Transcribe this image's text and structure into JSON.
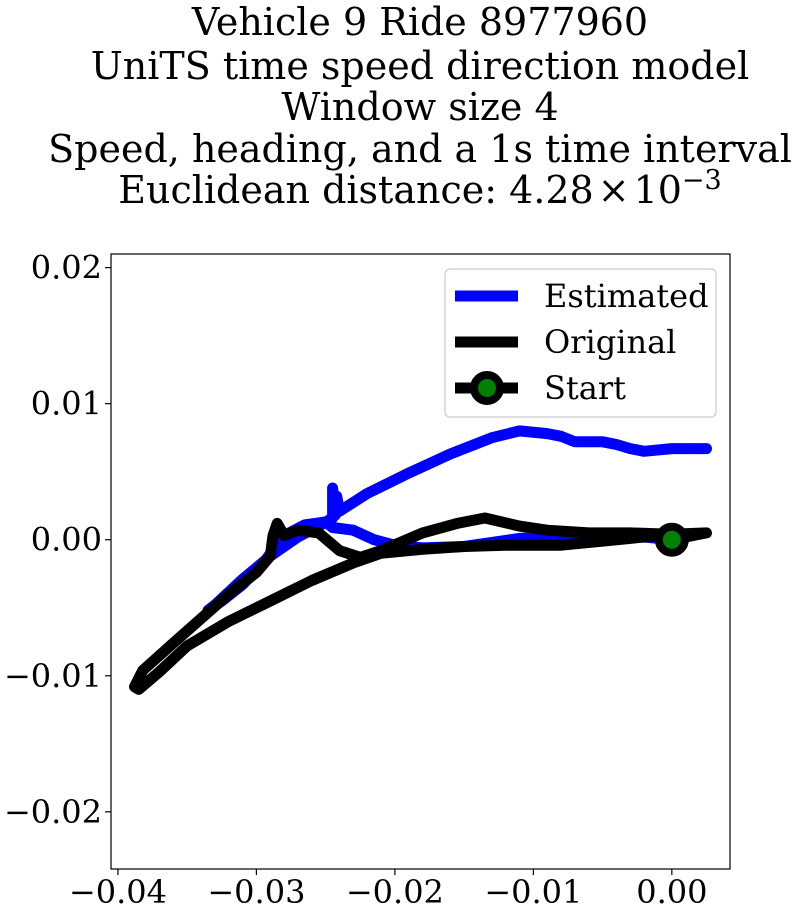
{
  "chart_data": {
    "type": "line",
    "title_lines": [
      "Vehicle 9 Ride 8977960",
      "UniTS time speed direction model",
      "Window size 4",
      "Speed, heading, and a 1s time interval"
    ],
    "title_distance_prefix": "Euclidean distance: ",
    "title_distance_mantissa": "4.28",
    "title_distance_times": "×",
    "title_distance_base": "10",
    "title_distance_exponent": "−3",
    "xlabel": "",
    "ylabel": "",
    "xlim": [
      -0.0405,
      0.0042
    ],
    "ylim": [
      -0.0242,
      0.021
    ],
    "grid": false,
    "legend_position": "top-right",
    "x_ticks": [
      {
        "value": -0.04,
        "label": "−0.04"
      },
      {
        "value": -0.03,
        "label": "−0.03"
      },
      {
        "value": -0.02,
        "label": "−0.02"
      },
      {
        "value": -0.01,
        "label": "−0.01"
      },
      {
        "value": 0.0,
        "label": "0.00"
      }
    ],
    "y_ticks": [
      {
        "value": 0.02,
        "label": "0.02"
      },
      {
        "value": 0.01,
        "label": "0.01"
      },
      {
        "value": 0.0,
        "label": "0.00"
      },
      {
        "value": -0.01,
        "label": "−0.01"
      },
      {
        "value": -0.02,
        "label": "−0.02"
      }
    ],
    "series": [
      {
        "name": "Estimated",
        "color": "#0000ff",
        "points": [
          [
            0.0,
            0.0
          ],
          [
            -0.002,
            0.0002
          ],
          [
            -0.005,
            0.0001
          ],
          [
            -0.008,
            0.0002
          ],
          [
            -0.011,
            0.0001
          ],
          [
            -0.013,
            -0.0002
          ],
          [
            -0.015,
            -0.0005
          ],
          [
            -0.018,
            -0.0006
          ],
          [
            -0.02,
            -0.0004
          ],
          [
            -0.0215,
            0.0
          ],
          [
            -0.023,
            0.0007
          ],
          [
            -0.0245,
            0.0009
          ],
          [
            -0.025,
            0.0013
          ],
          [
            -0.0265,
            0.0011
          ],
          [
            -0.028,
            0.0003
          ],
          [
            -0.0295,
            -0.0017
          ],
          [
            -0.031,
            -0.0033
          ],
          [
            -0.0325,
            -0.0045
          ],
          [
            -0.0335,
            -0.0052
          ],
          [
            -0.033,
            -0.0048
          ],
          [
            -0.031,
            -0.0029
          ],
          [
            -0.029,
            -0.0012
          ],
          [
            -0.027,
            0.0002
          ],
          [
            -0.0255,
            0.001
          ],
          [
            -0.0245,
            0.0016
          ],
          [
            -0.0245,
            0.0038
          ],
          [
            -0.0243,
            0.0018
          ],
          [
            -0.0242,
            0.0032
          ],
          [
            -0.024,
            0.0021
          ],
          [
            -0.022,
            0.0034
          ],
          [
            -0.019,
            0.0049
          ],
          [
            -0.016,
            0.0063
          ],
          [
            -0.013,
            0.0075
          ],
          [
            -0.011,
            0.008
          ],
          [
            -0.009,
            0.0078
          ],
          [
            -0.008,
            0.0076
          ],
          [
            -0.007,
            0.0072
          ],
          [
            -0.005,
            0.0072
          ],
          [
            -0.004,
            0.007
          ],
          [
            -0.003,
            0.0067
          ],
          [
            -0.002,
            0.0065
          ],
          [
            0.0,
            0.0067
          ],
          [
            0.0025,
            0.0067
          ]
        ]
      },
      {
        "name": "Original",
        "color": "#000000",
        "points": [
          [
            0.0,
            0.0
          ],
          [
            0.0025,
            0.0005
          ],
          [
            0.0,
            0.0004
          ],
          [
            -0.003,
            0.0005
          ],
          [
            -0.006,
            0.0005
          ],
          [
            -0.009,
            0.0007
          ],
          [
            -0.011,
            0.001
          ],
          [
            -0.0135,
            0.0016
          ],
          [
            -0.0155,
            0.0012
          ],
          [
            -0.018,
            0.0005
          ],
          [
            -0.021,
            -0.0008
          ],
          [
            -0.0225,
            -0.0013
          ],
          [
            -0.024,
            -0.0008
          ],
          [
            -0.0255,
            0.0005
          ],
          [
            -0.027,
            0.0007
          ],
          [
            -0.028,
            0.0003
          ],
          [
            -0.0285,
            0.0012
          ],
          [
            -0.0288,
            0.0003
          ],
          [
            -0.029,
            -0.0012
          ],
          [
            -0.03,
            -0.0024
          ],
          [
            -0.032,
            -0.004
          ],
          [
            -0.034,
            -0.0058
          ],
          [
            -0.036,
            -0.0076
          ],
          [
            -0.0382,
            -0.0096
          ],
          [
            -0.0388,
            -0.0108
          ],
          [
            -0.0385,
            -0.011
          ],
          [
            -0.037,
            -0.0097
          ],
          [
            -0.035,
            -0.0078
          ],
          [
            -0.032,
            -0.006
          ],
          [
            -0.029,
            -0.0045
          ],
          [
            -0.026,
            -0.003
          ],
          [
            -0.023,
            -0.0017
          ],
          [
            -0.021,
            -0.001
          ],
          [
            -0.018,
            -0.0007
          ],
          [
            -0.015,
            -0.0005
          ],
          [
            -0.012,
            -0.0004
          ],
          [
            -0.008,
            -0.0004
          ],
          [
            -0.005,
            -0.0001
          ],
          [
            -0.002,
            0.0002
          ],
          [
            0.0,
            0.0003
          ]
        ]
      }
    ],
    "start_point": {
      "name": "Start",
      "x": 0.0,
      "y": 0.0,
      "marker_edge_color": "#000000",
      "marker_face_color": "#008000"
    }
  }
}
